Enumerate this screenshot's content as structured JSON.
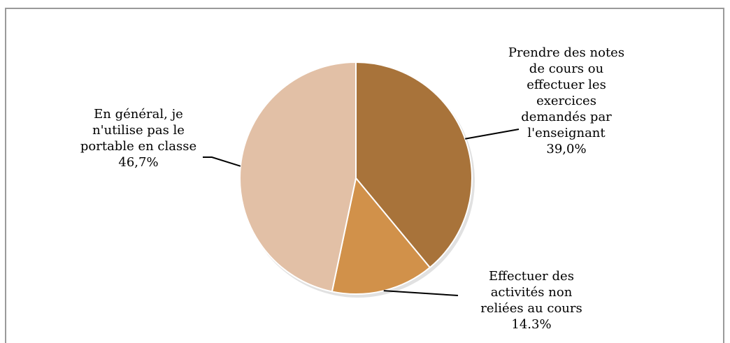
{
  "chart_data": {
    "type": "pie",
    "start_angle_deg": 0,
    "direction": "clockwise",
    "slices": [
      {
        "label_lines": [
          "Prendre des notes",
          "de cours ou",
          "effectuer les",
          "exercices",
          "demandés par",
          "l'enseignant"
        ],
        "value_label": "39,0%",
        "value": 39.0,
        "color": "#A8733A"
      },
      {
        "label_lines": [
          "Effectuer des",
          "activités non",
          "reliées au cours"
        ],
        "value_label": "14.3%",
        "value": 14.3,
        "color": "#D1914A"
      },
      {
        "label_lines": [
          "En général, je",
          "n'utilise pas le",
          "portable en classe"
        ],
        "value_label": "46,7%",
        "value": 46.7,
        "color": "#E2C0A6"
      }
    ]
  }
}
